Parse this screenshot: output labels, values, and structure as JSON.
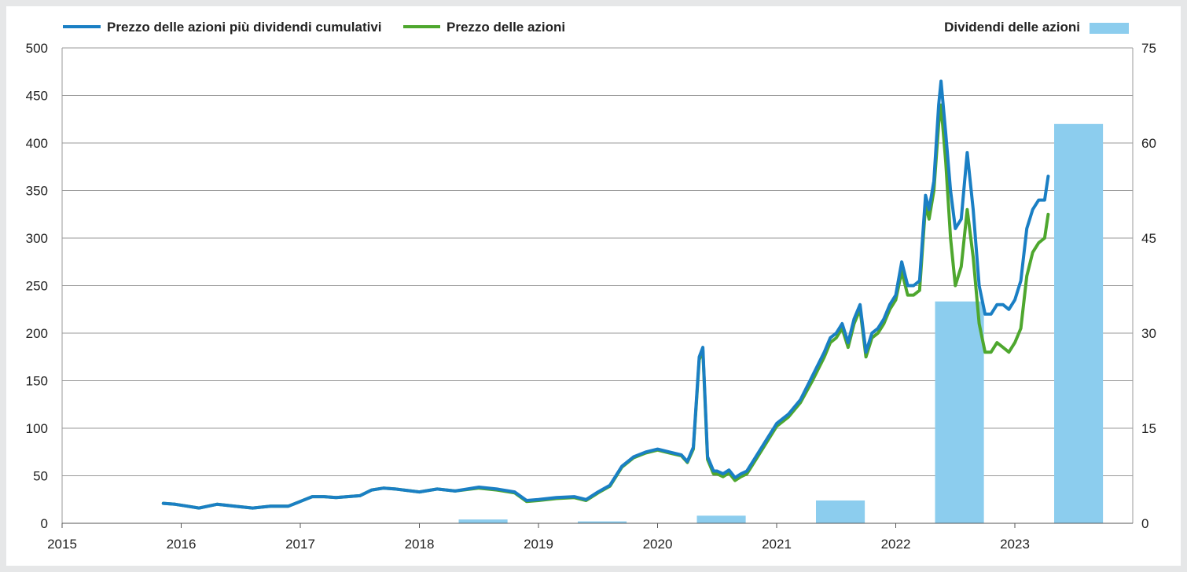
{
  "chart_data": {
    "type": "line",
    "title": "",
    "xlabel": "",
    "ylabel": "",
    "x_ticks": [
      "2015",
      "2016",
      "2017",
      "2018",
      "2019",
      "2020",
      "2021",
      "2022",
      "2023"
    ],
    "x_range": [
      2015,
      2023.99
    ],
    "y_left_ticks": [
      "0",
      "50",
      "100",
      "150",
      "200",
      "250",
      "300",
      "350",
      "400",
      "450",
      "500"
    ],
    "y_left_range": [
      0,
      500
    ],
    "y_right_ticks": [
      "0",
      "15",
      "30",
      "45",
      "60",
      "75"
    ],
    "y_right_range": [
      0,
      75
    ],
    "grid": "horizontal",
    "legend_position": "top",
    "colors": {
      "total_return": "#1a7fc4",
      "price": "#4ea72e",
      "dividends": "#8ccdee",
      "grid": "#9a9a9a"
    },
    "series": [
      {
        "name": "Prezzo delle azioni più dividendi cumulativi",
        "axis": "left",
        "x": [
          2015.85,
          2015.95,
          2016.05,
          2016.15,
          2016.3,
          2016.45,
          2016.6,
          2016.75,
          2016.9,
          2017.0,
          2017.1,
          2017.2,
          2017.3,
          2017.5,
          2017.6,
          2017.7,
          2017.8,
          2018.0,
          2018.15,
          2018.3,
          2018.5,
          2018.65,
          2018.8,
          2018.9,
          2019.0,
          2019.15,
          2019.3,
          2019.4,
          2019.5,
          2019.6,
          2019.7,
          2019.8,
          2019.9,
          2020.0,
          2020.1,
          2020.2,
          2020.25,
          2020.3,
          2020.35,
          2020.38,
          2020.42,
          2020.47,
          2020.5,
          2020.55,
          2020.6,
          2020.65,
          2020.7,
          2020.75,
          2020.8,
          2020.9,
          2021.0,
          2021.1,
          2021.2,
          2021.3,
          2021.4,
          2021.45,
          2021.5,
          2021.55,
          2021.6,
          2021.65,
          2021.7,
          2021.75,
          2021.8,
          2021.85,
          2021.9,
          2021.95,
          2022.0,
          2022.05,
          2022.1,
          2022.15,
          2022.2,
          2022.25,
          2022.28,
          2022.32,
          2022.36,
          2022.38,
          2022.42,
          2022.46,
          2022.5,
          2022.55,
          2022.6,
          2022.65,
          2022.7,
          2022.75,
          2022.8,
          2022.85,
          2022.9,
          2022.95,
          2023.0,
          2023.05,
          2023.1,
          2023.15,
          2023.2,
          2023.25,
          2023.28
        ],
        "values": [
          21,
          20,
          18,
          16,
          20,
          18,
          16,
          18,
          18,
          23,
          28,
          28,
          27,
          29,
          35,
          37,
          36,
          33,
          36,
          34,
          38,
          36,
          33,
          24,
          25,
          27,
          28,
          25,
          33,
          40,
          60,
          70,
          75,
          78,
          75,
          72,
          65,
          80,
          175,
          185,
          70,
          55,
          55,
          52,
          56,
          48,
          52,
          55,
          65,
          85,
          105,
          115,
          130,
          155,
          180,
          195,
          200,
          210,
          190,
          215,
          230,
          180,
          200,
          205,
          215,
          230,
          240,
          275,
          250,
          250,
          255,
          345,
          330,
          360,
          440,
          465,
          410,
          350,
          310,
          320,
          390,
          330,
          250,
          220,
          220,
          230,
          230,
          225,
          235,
          255,
          310,
          330,
          340,
          340,
          365
        ]
      },
      {
        "name": "Prezzo delle azioni",
        "axis": "left",
        "x": [
          2015.85,
          2015.95,
          2016.05,
          2016.15,
          2016.3,
          2016.45,
          2016.6,
          2016.75,
          2016.9,
          2017.0,
          2017.1,
          2017.2,
          2017.3,
          2017.5,
          2017.6,
          2017.7,
          2017.8,
          2018.0,
          2018.15,
          2018.3,
          2018.5,
          2018.65,
          2018.8,
          2018.9,
          2019.0,
          2019.15,
          2019.3,
          2019.4,
          2019.5,
          2019.6,
          2019.7,
          2019.8,
          2019.9,
          2020.0,
          2020.1,
          2020.2,
          2020.25,
          2020.3,
          2020.35,
          2020.38,
          2020.42,
          2020.47,
          2020.5,
          2020.55,
          2020.6,
          2020.65,
          2020.7,
          2020.75,
          2020.8,
          2020.9,
          2021.0,
          2021.1,
          2021.2,
          2021.3,
          2021.4,
          2021.45,
          2021.5,
          2021.55,
          2021.6,
          2021.65,
          2021.7,
          2021.75,
          2021.8,
          2021.85,
          2021.9,
          2021.95,
          2022.0,
          2022.05,
          2022.1,
          2022.15,
          2022.2,
          2022.25,
          2022.28,
          2022.32,
          2022.36,
          2022.38,
          2022.42,
          2022.46,
          2022.5,
          2022.55,
          2022.6,
          2022.65,
          2022.7,
          2022.75,
          2022.8,
          2022.85,
          2022.9,
          2022.95,
          2023.0,
          2023.05,
          2023.1,
          2023.15,
          2023.2,
          2023.25,
          2023.28
        ],
        "values": [
          21,
          20,
          18,
          16,
          20,
          18,
          16,
          18,
          18,
          23,
          28,
          28,
          27,
          29,
          35,
          37,
          36,
          33,
          36,
          34,
          37,
          35,
          32,
          23,
          24,
          26,
          27,
          24,
          32,
          39,
          59,
          69,
          74,
          77,
          74,
          71,
          64,
          78,
          172,
          182,
          67,
          52,
          52,
          49,
          53,
          45,
          49,
          52,
          62,
          82,
          102,
          112,
          127,
          150,
          175,
          190,
          195,
          205,
          185,
          210,
          225,
          175,
          195,
          200,
          210,
          225,
          235,
          265,
          240,
          240,
          245,
          335,
          320,
          350,
          420,
          440,
          380,
          300,
          250,
          270,
          330,
          280,
          210,
          180,
          180,
          190,
          185,
          180,
          190,
          205,
          260,
          285,
          295,
          300,
          325
        ]
      },
      {
        "name": "Dividendi delle azioni",
        "axis": "right",
        "type": "bar",
        "bars": [
          {
            "x_start": 2018.33,
            "x_end": 2018.74,
            "value": 0.6
          },
          {
            "x_start": 2019.33,
            "x_end": 2019.74,
            "value": 0.3
          },
          {
            "x_start": 2020.33,
            "x_end": 2020.74,
            "value": 1.2
          },
          {
            "x_start": 2021.33,
            "x_end": 2021.74,
            "value": 3.6
          },
          {
            "x_start": 2022.33,
            "x_end": 2022.74,
            "value": 35
          },
          {
            "x_start": 2023.33,
            "x_end": 2023.74,
            "value": 63
          }
        ]
      }
    ]
  }
}
